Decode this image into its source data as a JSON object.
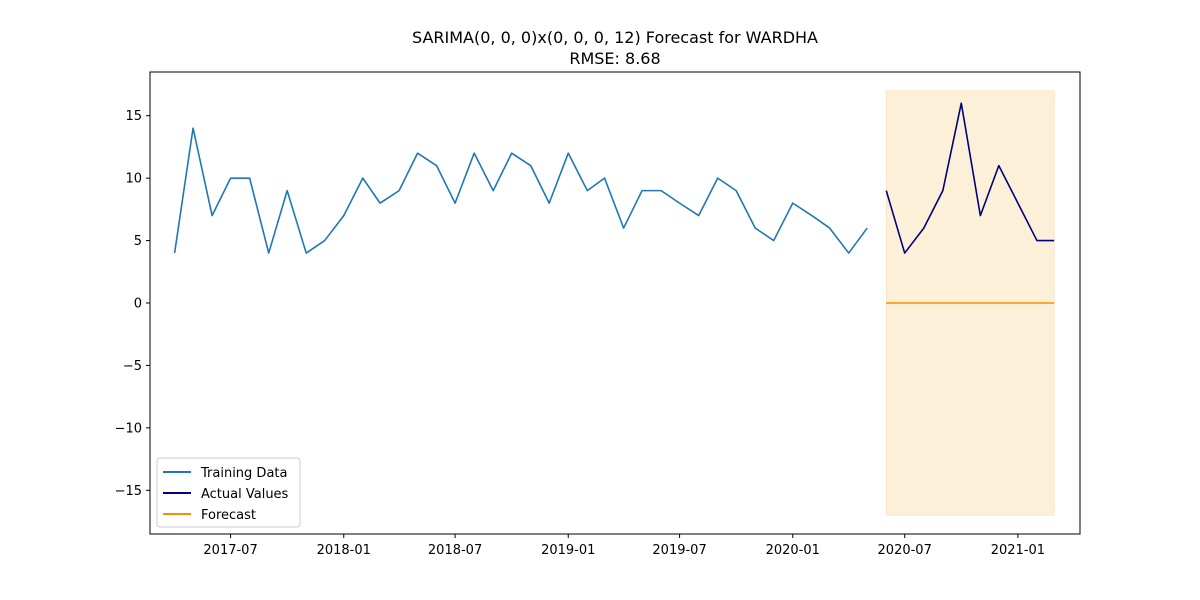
{
  "chart_data": {
    "type": "line",
    "title": "SARIMA(0, 0, 0)x(0, 0, 0, 12) Forecast for WARDHA",
    "subtitle": "RMSE: 8.68",
    "xlabel": "",
    "ylabel": "",
    "ylim": [
      -18.5,
      18.5
    ],
    "yticks": [
      -15,
      -10,
      -5,
      0,
      5,
      10,
      15
    ],
    "ytick_labels": [
      "−15",
      "−10",
      "−5",
      "0",
      "5",
      "10",
      "15"
    ],
    "xticks": [
      "2017-07",
      "2018-01",
      "2018-07",
      "2019-01",
      "2019-07",
      "2020-01",
      "2020-07",
      "2021-01"
    ],
    "xlim": [
      "2017-02-20",
      "2021-04-12"
    ],
    "grid": false,
    "legend_position": "lower-left",
    "confidence_band": {
      "x_start": "2020-06",
      "x_end": "2021-03",
      "lower": -17,
      "upper": 17,
      "color": "#fdf0d9"
    },
    "series": [
      {
        "name": "Training Data",
        "color": "#1f77b4",
        "x": [
          "2017-04",
          "2017-05",
          "2017-06",
          "2017-07",
          "2017-08",
          "2017-09",
          "2017-10",
          "2017-11",
          "2017-12",
          "2018-01",
          "2018-02",
          "2018-03",
          "2018-04",
          "2018-05",
          "2018-06",
          "2018-07",
          "2018-08",
          "2018-09",
          "2018-10",
          "2018-11",
          "2018-12",
          "2019-01",
          "2019-02",
          "2019-03",
          "2019-04",
          "2019-05",
          "2019-06",
          "2019-07",
          "2019-08",
          "2019-09",
          "2019-10",
          "2019-11",
          "2019-12",
          "2020-01",
          "2020-02",
          "2020-03",
          "2020-04",
          "2020-05"
        ],
        "values": [
          4,
          14,
          7,
          10,
          10,
          4,
          9,
          4,
          5,
          7,
          10,
          8,
          9,
          12,
          11,
          8,
          12,
          9,
          12,
          11,
          8,
          12,
          9,
          10,
          6,
          9,
          9,
          8,
          7,
          10,
          9,
          6,
          5,
          8,
          7,
          6,
          4,
          6
        ]
      },
      {
        "name": "Actual Values",
        "color": "#000080",
        "x": [
          "2020-06",
          "2020-07",
          "2020-08",
          "2020-09",
          "2020-10",
          "2020-11",
          "2020-12",
          "2021-01",
          "2021-02",
          "2021-03"
        ],
        "values": [
          9,
          4,
          6,
          9,
          16,
          7,
          11,
          8,
          5,
          5
        ]
      },
      {
        "name": "Forecast",
        "color": "#ff8c00",
        "x": [
          "2020-06",
          "2020-07",
          "2020-08",
          "2020-09",
          "2020-10",
          "2020-11",
          "2020-12",
          "2021-01",
          "2021-02",
          "2021-03"
        ],
        "values": [
          0,
          0,
          0,
          0,
          0,
          0,
          0,
          0,
          0,
          0
        ]
      }
    ]
  }
}
